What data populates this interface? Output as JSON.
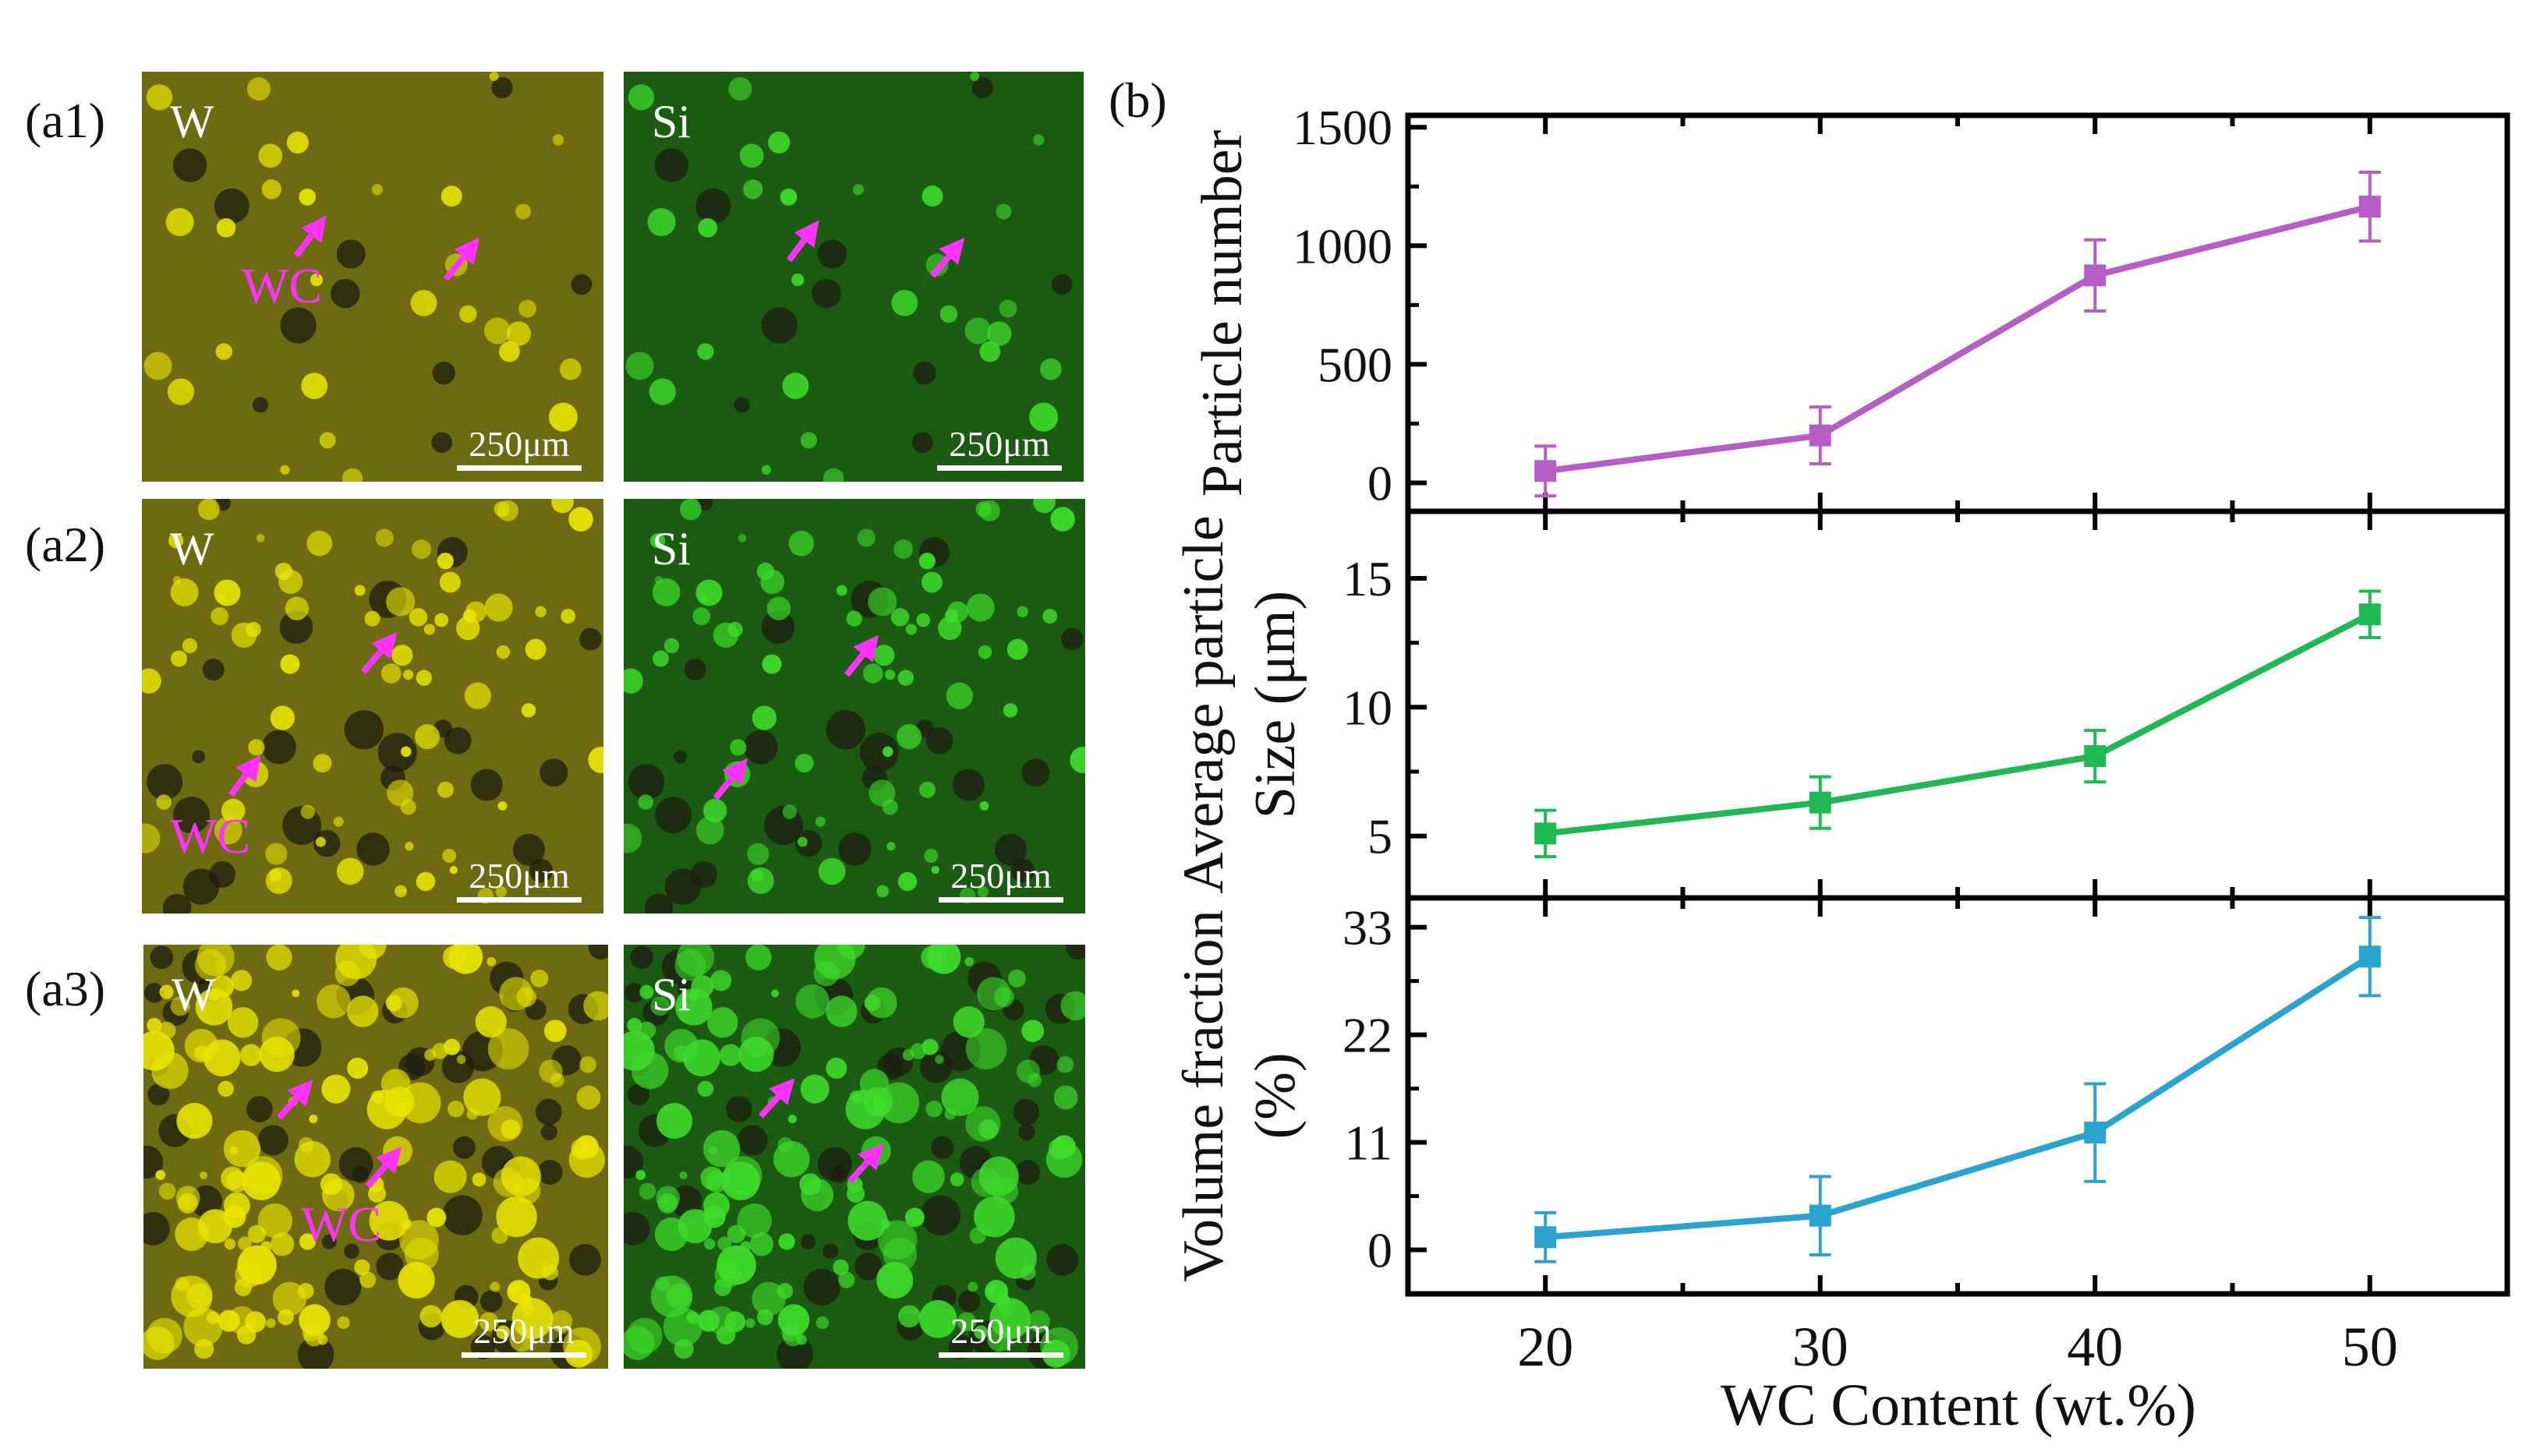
{
  "micrographs": {
    "rows": [
      {
        "label": "(a1)",
        "left_element": "W",
        "right_element": "Si",
        "scale_left": "250μm",
        "scale_right": "250μm",
        "wc_label": "WC"
      },
      {
        "label": "(a2)",
        "left_element": "W",
        "right_element": "Si",
        "scale_left": "250μm",
        "scale_right": "250μm",
        "wc_label": "WC"
      },
      {
        "label": "(a3)",
        "left_element": "W",
        "right_element": "Si",
        "scale_left": "250μm",
        "scale_right": "250μm",
        "wc_label": "WC"
      }
    ],
    "colors": {
      "w_bg": "#6e6a12",
      "w_particle": "#e8e400",
      "si_bg": "#1b5c12",
      "si_particle": "#3edc2a",
      "arrow": "#ff33ff",
      "pore": "#1c1c10"
    }
  },
  "chart_panel_label": "(b)",
  "chart_data": {
    "type": "line",
    "x": [
      20,
      30,
      40,
      50
    ],
    "xlabel": "WC Content (wt.%)",
    "xlim": [
      15,
      55
    ],
    "xticks": [
      20,
      30,
      40,
      50
    ],
    "panels": [
      {
        "name": "particle-number",
        "ylabel_lines": [
          "Particle number"
        ],
        "values": [
          50,
          200,
          875,
          1165
        ],
        "errors": [
          105,
          120,
          150,
          145
        ],
        "color": "#b65ec6",
        "ylim": [
          -120,
          1550
        ],
        "yticks": [
          0,
          500,
          1000,
          1500
        ]
      },
      {
        "name": "average-particle-size",
        "ylabel_lines": [
          "Average particle",
          "Size (μm)"
        ],
        "values": [
          5.1,
          6.3,
          8.1,
          13.6
        ],
        "errors": [
          0.9,
          1.0,
          1.0,
          0.9
        ],
        "color": "#20b855",
        "ylim": [
          2.6,
          17.6
        ],
        "yticks": [
          5,
          10,
          15
        ]
      },
      {
        "name": "volume-fraction",
        "ylabel_lines": [
          "Volume fraction",
          "(%)"
        ],
        "values": [
          1.3,
          3.5,
          12.0,
          30.0
        ],
        "errors": [
          2.5,
          4.0,
          5.0,
          4.0
        ],
        "color": "#2aa3cf",
        "ylim": [
          -4.5,
          36.0
        ],
        "yticks": [
          0,
          11,
          22,
          33
        ]
      }
    ]
  }
}
